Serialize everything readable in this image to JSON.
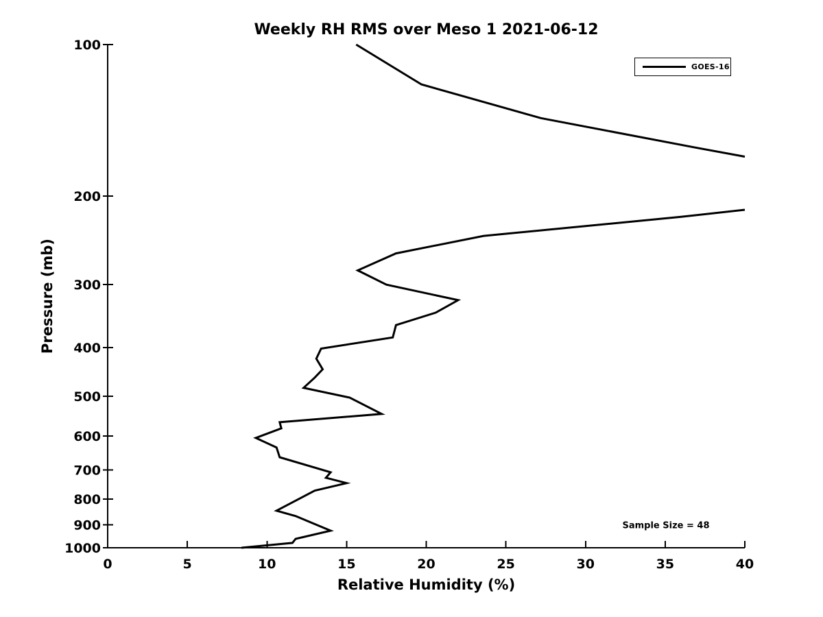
{
  "chart_data": {
    "type": "line",
    "title": "Weekly RH RMS over Meso 1 2021-06-12",
    "xlabel": "Relative Humidity (%)",
    "ylabel": "Pressure (mb)",
    "xlim": [
      0,
      40
    ],
    "ylim": [
      100,
      1000
    ],
    "x_ticks": [
      0,
      5,
      10,
      15,
      20,
      25,
      30,
      35,
      40
    ],
    "y_ticks": [
      100,
      200,
      300,
      400,
      500,
      600,
      700,
      800,
      900,
      1000
    ],
    "y_scale": "log",
    "y_axis_direction": "pressure decreasing upward (inverted)",
    "grid": false,
    "line_color": "#000000",
    "line_width": 3,
    "axis_color": "#000000",
    "legend_position": "upper right",
    "series": [
      {
        "name": "GOES-16",
        "color": "#000000",
        "clip_note": "Profile exceeds RH 40% between ~167 mb and ~213 mb; the drawn line is clipped at the right axis limit, so it is rendered as two segments.",
        "segments": [
          {
            "points_rh_pressure": [
              [
                15.6,
                100
              ],
              [
                19.7,
                120
              ],
              [
                27.2,
                140
              ],
              [
                36.8,
                160
              ],
              [
                40.0,
                167
              ]
            ]
          },
          {
            "points_rh_pressure": [
              [
                40.0,
                213
              ],
              [
                36.0,
                220
              ],
              [
                23.6,
                240
              ],
              [
                18.1,
                260
              ],
              [
                15.7,
                281
              ],
              [
                17.5,
                300
              ],
              [
                22.0,
                322
              ],
              [
                20.6,
                341
              ],
              [
                18.1,
                361
              ],
              [
                17.9,
                382
              ],
              [
                13.4,
                402
              ],
              [
                13.1,
                421
              ],
              [
                13.5,
                442
              ],
              [
                13.0,
                459
              ],
              [
                12.3,
                481
              ],
              [
                15.2,
                503
              ],
              [
                17.2,
                542
              ],
              [
                10.8,
                563
              ],
              [
                10.9,
                579
              ],
              [
                9.3,
                605
              ],
              [
                10.6,
                632
              ],
              [
                10.8,
                661
              ],
              [
                14.0,
                708
              ],
              [
                13.7,
                726
              ],
              [
                15.0,
                744
              ],
              [
                13.0,
                770
              ],
              [
                10.6,
                844
              ],
              [
                11.8,
                865
              ],
              [
                14.0,
                925
              ],
              [
                11.8,
                960
              ],
              [
                11.6,
                978
              ],
              [
                8.4,
                1000
              ]
            ]
          }
        ]
      }
    ],
    "annotations": [
      {
        "text": "Sample Size = 48",
        "position": "lower right inside axes"
      }
    ]
  },
  "legend": {
    "entries": [
      {
        "label": "GOES-16",
        "color": "#000000"
      }
    ]
  }
}
